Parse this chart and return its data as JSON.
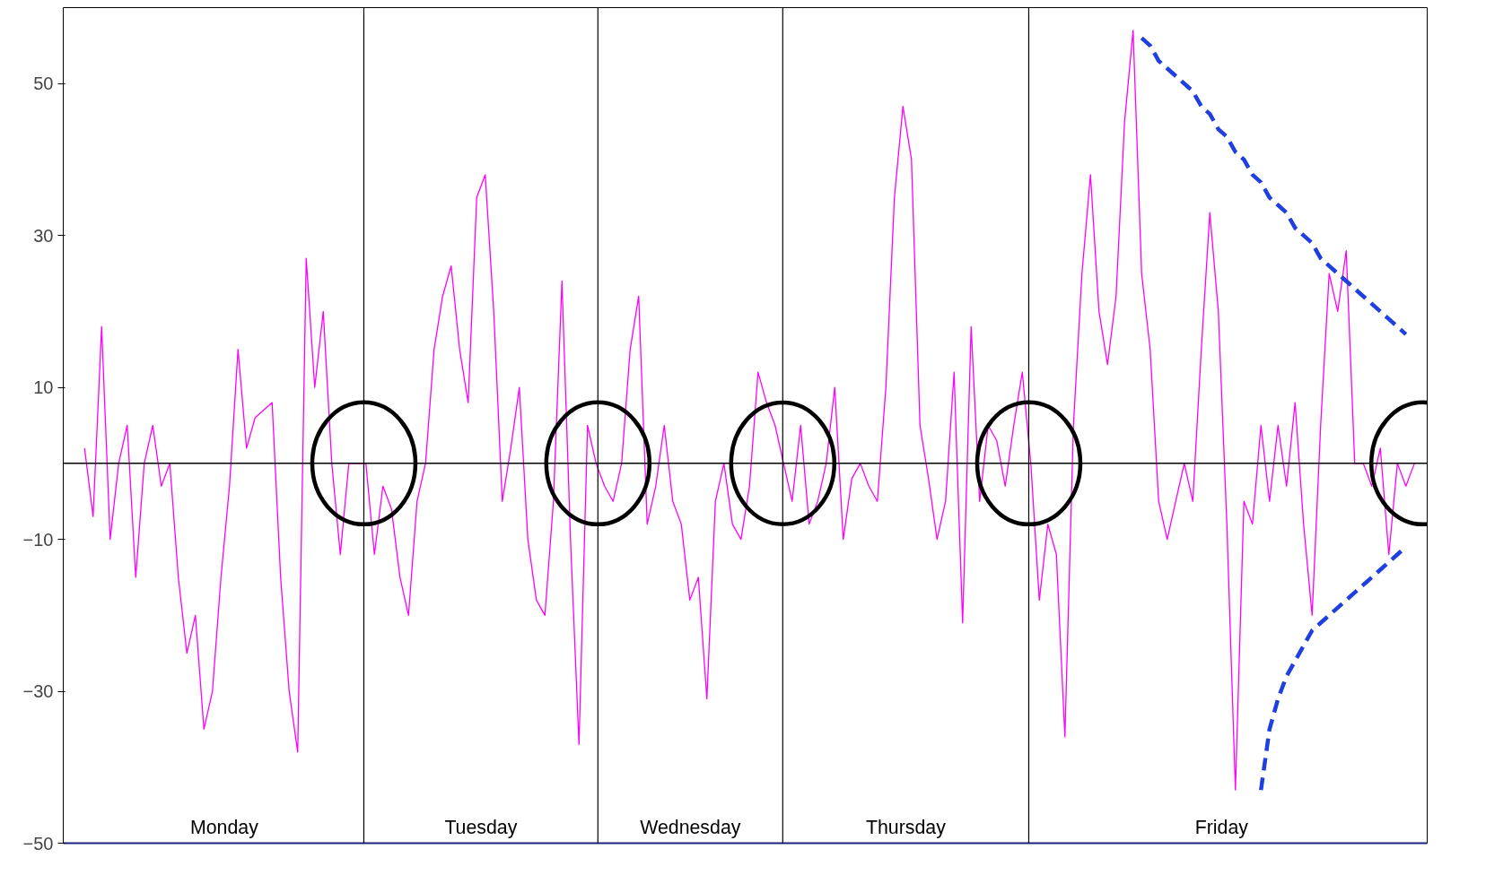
{
  "chart_data": {
    "type": "line",
    "categories": [
      null,
      null,
      null,
      null,
      null,
      null,
      null,
      null,
      null,
      null,
      null,
      null,
      null,
      null,
      null,
      null,
      null,
      null,
      null,
      null,
      null,
      null,
      null,
      null,
      null,
      null,
      null,
      null,
      null,
      null,
      null,
      null,
      null,
      null,
      null,
      null,
      null,
      null,
      null,
      null,
      null,
      null,
      null,
      null,
      null,
      null,
      null,
      null,
      null,
      null,
      null,
      null,
      null,
      null,
      null,
      null,
      null,
      null,
      null,
      null,
      null,
      null,
      null,
      null,
      null,
      null,
      null,
      null,
      null,
      null,
      null,
      null,
      null,
      null,
      null,
      null,
      null,
      null,
      null,
      null,
      null,
      null,
      null,
      null,
      null,
      null,
      null,
      null,
      null,
      null,
      null,
      null,
      null,
      null,
      null,
      null,
      null,
      null,
      null,
      null,
      null,
      null,
      null,
      null,
      null,
      null,
      null,
      null,
      null,
      null,
      null,
      null,
      null,
      null,
      null,
      null,
      null,
      null,
      null,
      null,
      null,
      null,
      null,
      null,
      null,
      null,
      null,
      null,
      null,
      null,
      null,
      null,
      null,
      null,
      null,
      null,
      null,
      null,
      null,
      null,
      null,
      null,
      null,
      null,
      null,
      null,
      null,
      null,
      null,
      null,
      null,
      null,
      null,
      null,
      null,
      null,
      null
    ],
    "series": [
      {
        "color": "#ff00ff",
        "values": [
          2,
          -7,
          18,
          -10,
          0,
          5,
          -15,
          0,
          5,
          -3,
          0,
          -15,
          -25,
          -20,
          -35,
          -30,
          -15,
          -3,
          15,
          2,
          6,
          7,
          8,
          -15,
          -30,
          -38,
          27,
          10,
          20,
          0,
          -12,
          0,
          0,
          0,
          -12,
          -3,
          -6,
          -15,
          -20,
          -5,
          0,
          15,
          22,
          26,
          15,
          8,
          35,
          38,
          20,
          -5,
          2,
          10,
          -10,
          -18,
          -20,
          -5,
          24,
          -10,
          -37,
          5,
          0,
          -3,
          -5,
          0,
          15,
          22,
          -8,
          -3,
          5,
          -5,
          -8,
          -18,
          -15,
          -31,
          -5,
          0,
          -8,
          -10,
          -3,
          12,
          8,
          5,
          0,
          -5,
          5,
          -8,
          -5,
          0,
          10,
          -10,
          -2,
          0,
          -3,
          -5,
          10,
          35,
          47,
          40,
          5,
          -2,
          -10,
          -5,
          12,
          -21,
          18,
          -5,
          5,
          3,
          -3,
          5,
          12,
          0,
          -18,
          -8,
          -12,
          -36,
          5,
          25,
          38,
          20,
          13,
          22,
          45,
          57,
          25,
          15,
          -5,
          -10,
          -5,
          0,
          -5,
          15,
          33,
          20,
          -8,
          -43,
          -5,
          -8,
          5,
          -5,
          5,
          -3,
          8,
          -8,
          -20,
          5,
          25,
          20,
          28,
          0,
          0,
          -3,
          2,
          -12,
          0,
          -3,
          0
        ]
      },
      {
        "color": "#1f3fe0",
        "line_style": "dashed",
        "values": [
          null,
          null,
          null,
          null,
          null,
          null,
          null,
          null,
          null,
          null,
          null,
          null,
          null,
          null,
          null,
          null,
          null,
          null,
          null,
          null,
          null,
          null,
          null,
          null,
          null,
          null,
          null,
          null,
          null,
          null,
          null,
          null,
          null,
          null,
          null,
          null,
          null,
          null,
          null,
          null,
          null,
          null,
          null,
          null,
          null,
          null,
          null,
          null,
          null,
          null,
          null,
          null,
          null,
          null,
          null,
          null,
          null,
          null,
          null,
          null,
          null,
          null,
          null,
          null,
          null,
          null,
          null,
          null,
          null,
          null,
          null,
          null,
          null,
          null,
          null,
          null,
          null,
          null,
          null,
          null,
          null,
          null,
          null,
          null,
          null,
          null,
          null,
          null,
          null,
          null,
          null,
          null,
          null,
          null,
          null,
          null,
          null,
          null,
          null,
          null,
          null,
          null,
          null,
          null,
          null,
          null,
          null,
          null,
          null,
          null,
          null,
          null,
          null,
          null,
          null,
          null,
          null,
          null,
          null,
          null,
          null,
          null,
          null,
          null,
          56,
          55,
          53,
          52,
          51,
          50,
          49,
          47,
          46,
          44,
          43,
          41,
          40,
          38,
          37,
          35,
          34,
          33,
          31,
          30,
          29,
          27,
          26,
          25,
          24,
          23,
          22,
          21,
          20,
          19,
          18,
          17,
          null
        ]
      },
      {
        "color": "#1f3fe0",
        "line_style": "dashed",
        "values": [
          null,
          null,
          null,
          null,
          null,
          null,
          null,
          null,
          null,
          null,
          null,
          null,
          null,
          null,
          null,
          null,
          null,
          null,
          null,
          null,
          null,
          null,
          null,
          null,
          null,
          null,
          null,
          null,
          null,
          null,
          null,
          null,
          null,
          null,
          null,
          null,
          null,
          null,
          null,
          null,
          null,
          null,
          null,
          null,
          null,
          null,
          null,
          null,
          null,
          null,
          null,
          null,
          null,
          null,
          null,
          null,
          null,
          null,
          null,
          null,
          null,
          null,
          null,
          null,
          null,
          null,
          null,
          null,
          null,
          null,
          null,
          null,
          null,
          null,
          null,
          null,
          null,
          null,
          null,
          null,
          null,
          null,
          null,
          null,
          null,
          null,
          null,
          null,
          null,
          null,
          null,
          null,
          null,
          null,
          null,
          null,
          null,
          null,
          null,
          null,
          null,
          null,
          null,
          null,
          null,
          null,
          null,
          null,
          null,
          null,
          null,
          null,
          null,
          null,
          null,
          null,
          null,
          null,
          null,
          null,
          null,
          null,
          null,
          null,
          null,
          null,
          null,
          null,
          null,
          null,
          null,
          null,
          null,
          null,
          null,
          null,
          null,
          null,
          -43,
          -35,
          -31,
          -28,
          -26,
          -24,
          -22,
          -21,
          -20,
          -19,
          -18,
          -17,
          -16,
          -15,
          -14,
          -13,
          -12,
          -11,
          null
        ]
      }
    ],
    "ylim": [
      -50,
      60
    ],
    "yticks": [
      -50,
      -30,
      -10,
      10,
      30,
      50
    ],
    "grid": false,
    "tick_labels": "y",
    "line_style": "solid",
    "ref_lines": [
      {
        "axis": "y",
        "value": 0
      }
    ],
    "annotations": [
      "Monday",
      "Tuesday",
      "Wednesday",
      "Thursday",
      "Friday"
    ]
  }
}
